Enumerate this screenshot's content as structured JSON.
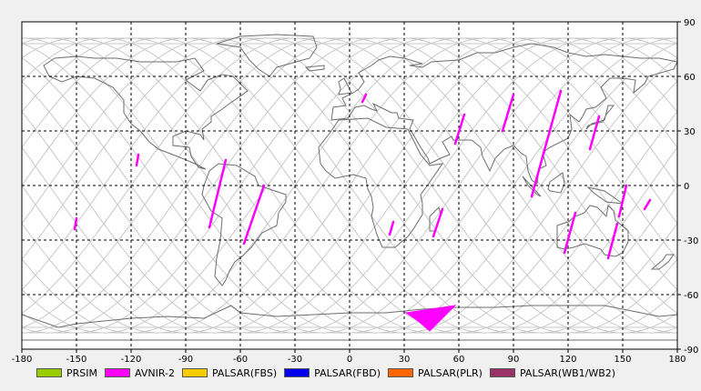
{
  "map": {
    "x_ticks": [
      "-180",
      "-150",
      "-120",
      "-90",
      "-60",
      "-30",
      "0",
      "30",
      "60",
      "90",
      "120",
      "150",
      "180"
    ],
    "y_ticks": [
      "90",
      "60",
      "30",
      "0",
      "-30",
      "-60",
      "-90"
    ],
    "background_color": "#ffffff",
    "coastline_color": "#6e6e6e",
    "orbit_track_color": "#c8c8c8",
    "grid_color": "#000000",
    "footprint_color": "#ff00ff"
  },
  "legend": [
    {
      "label": "PRSIM",
      "color": "#99cc00"
    },
    {
      "label": "AVNIR-2",
      "color": "#ff00ff"
    },
    {
      "label": "PALSAR(FBS)",
      "color": "#ffcc00"
    },
    {
      "label": "PALSAR(FBD)",
      "color": "#0000ee"
    },
    {
      "label": "PALSAR(PLR)",
      "color": "#ff6600"
    },
    {
      "label": "PALSAR(WB1/WB2)",
      "color": "#993366"
    }
  ],
  "footprints": [
    {
      "lat1": 11,
      "lon1": -117,
      "lat2": 17,
      "lon2": -116
    },
    {
      "lat1": -24,
      "lon1": -151,
      "lat2": -18,
      "lon2": -150
    },
    {
      "lat1": -23,
      "lon1": -77,
      "lat2": 14,
      "lon2": -68
    },
    {
      "lat1": -32,
      "lon1": -58,
      "lat2": 0,
      "lon2": -47
    },
    {
      "lat1": 46,
      "lon1": 7,
      "lat2": 50,
      "lon2": 9
    },
    {
      "lat1": -27,
      "lon1": 22,
      "lat2": -20,
      "lon2": 24
    },
    {
      "lat1": -28,
      "lon1": 46,
      "lat2": -13,
      "lon2": 51
    },
    {
      "lat1": 23,
      "lon1": 58,
      "lat2": 39,
      "lon2": 63
    },
    {
      "lat1": 30,
      "lon1": 84,
      "lat2": 50,
      "lon2": 90
    },
    {
      "lat1": -6,
      "lon1": 100,
      "lat2": 52,
      "lon2": 116
    },
    {
      "lat1": -37,
      "lon1": 118,
      "lat2": -15,
      "lon2": 124
    },
    {
      "lat1": 20,
      "lon1": 132,
      "lat2": 38,
      "lon2": 137
    },
    {
      "lat1": -40,
      "lon1": 142,
      "lat2": -21,
      "lon2": 147
    },
    {
      "lat1": -17,
      "lon1": 148,
      "lat2": 0,
      "lon2": 152
    },
    {
      "lat1": -13,
      "lon1": 162,
      "lat2": -8,
      "lon2": 165
    }
  ],
  "antarctic_footprint": [
    [
      31,
      -70
    ],
    [
      58,
      -66
    ],
    [
      44,
      -80
    ],
    [
      37,
      -74
    ]
  ]
}
